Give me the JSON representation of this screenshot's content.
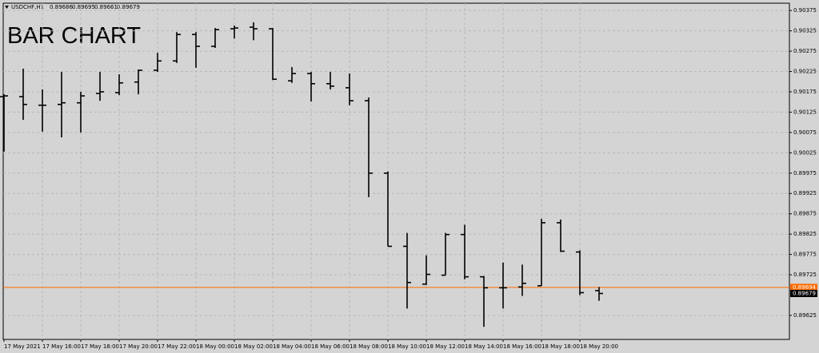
{
  "chart_data": {
    "type": "ohlc",
    "symbol": "USDCHF,H1",
    "title": "BAR CHART",
    "color": "#000000",
    "categories": [
      "17 May 2021",
      null,
      "17 May 16:00",
      null,
      "17 May 18:00",
      null,
      "17 May 20:00",
      null,
      "17 May 22:00",
      null,
      "18 May 00:00",
      null,
      "18 May 02:00",
      null,
      "18 May 04:00",
      null,
      "18 May 06:00",
      null,
      "18 May 08:00",
      null,
      "18 May 10:00",
      null,
      "18 May 12:00",
      null,
      "18 May 14:00",
      null,
      "18 May 16:00",
      null,
      "18 May 18:00",
      null,
      "18 May 20:00",
      null
    ],
    "open": [
      0.90163,
      0.90163,
      0.90142,
      0.90144,
      0.90148,
      0.90171,
      0.90173,
      0.90199,
      0.90228,
      0.90251,
      0.90316,
      0.90287,
      0.9033,
      0.90334,
      0.9033,
      0.90202,
      0.9022,
      0.90195,
      0.90185,
      0.90153,
      0.89975,
      0.89795,
      0.89702,
      0.89724,
      0.89824,
      0.8972,
      0.89693,
      0.89695,
      0.89698,
      0.89853,
      0.89781,
      0.89686
    ],
    "high": [
      0.90169,
      0.90232,
      0.90181,
      0.90224,
      0.90175,
      0.90224,
      0.90218,
      0.9023,
      0.90271,
      0.90322,
      0.90322,
      0.90332,
      0.90338,
      0.90346,
      0.90332,
      0.90236,
      0.90224,
      0.90224,
      0.9022,
      0.90161,
      0.89979,
      0.89828,
      0.89773,
      0.89828,
      0.89848,
      0.89722,
      0.89755,
      0.8975,
      0.89863,
      0.89861,
      0.89785,
      0.89695
    ],
    "low": [
      0.90028,
      0.90106,
      0.90077,
      0.90063,
      0.90075,
      0.90153,
      0.90167,
      0.90169,
      0.90224,
      0.90246,
      0.90234,
      0.90283,
      0.90306,
      0.90302,
      0.90204,
      0.90197,
      0.90151,
      0.90181,
      0.90142,
      0.89916,
      0.89795,
      0.89642,
      0.897,
      0.89724,
      0.89714,
      0.89597,
      0.89642,
      0.89673,
      0.89698,
      0.89781,
      0.89675,
      0.89661
    ],
    "close": [
      0.90165,
      0.90144,
      0.90142,
      0.90148,
      0.90165,
      0.90175,
      0.90197,
      0.90228,
      0.90251,
      0.90316,
      0.90287,
      0.90328,
      0.90332,
      0.9033,
      0.90206,
      0.9022,
      0.90195,
      0.90189,
      0.90153,
      0.89975,
      0.89795,
      0.89706,
      0.89726,
      0.89824,
      0.8972,
      0.89693,
      0.89693,
      0.89704,
      0.89853,
      0.89783,
      0.89681,
      0.89679
    ],
    "ylim": [
      0.89566,
      0.90393
    ],
    "yticks": [
      0.90375,
      0.90325,
      0.90275,
      0.90225,
      0.90175,
      0.90125,
      0.90075,
      0.90025,
      0.89975,
      0.89925,
      0.89875,
      0.89825,
      0.89775,
      0.89725,
      0.89625
    ],
    "grid": true,
    "price_line": {
      "value": 0.89694,
      "color": "#ff6a00"
    }
  }
}
